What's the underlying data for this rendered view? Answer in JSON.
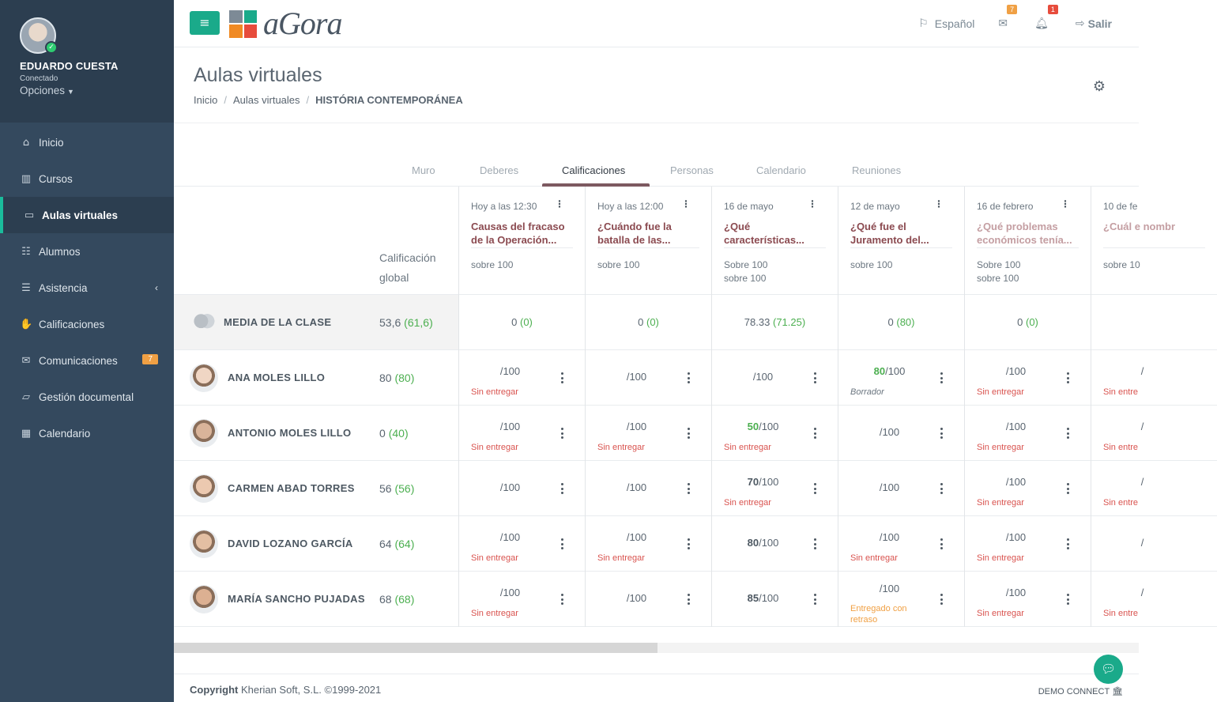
{
  "user": {
    "name": "EDUARDO CUESTA",
    "status": "Conectado",
    "options": "Opciones"
  },
  "sidebar": {
    "items": [
      {
        "label": "Inicio",
        "icon": "home-icon"
      },
      {
        "label": "Cursos",
        "icon": "books-icon"
      },
      {
        "label": "Aulas virtuales",
        "icon": "monitor-icon",
        "active": true
      },
      {
        "label": "Alumnos",
        "icon": "students-icon"
      },
      {
        "label": "Asistencia",
        "icon": "list-icon"
      },
      {
        "label": "Calificaciones",
        "icon": "handshake-icon"
      },
      {
        "label": "Comunicaciones",
        "icon": "envelope-icon",
        "badge": "7"
      },
      {
        "label": "Gestión documental",
        "icon": "folder-icon"
      },
      {
        "label": "Calendario",
        "icon": "calendar-icon"
      }
    ]
  },
  "topbar": {
    "logo": "aGora",
    "language": "Español",
    "mail_count": "7",
    "notif_count": "1",
    "logout": "Salir",
    "colors": {
      "accent": "#1aaa8a",
      "mail_badge": "#f0a044",
      "notif_badge": "#e74c3c"
    }
  },
  "page": {
    "title": "Aulas virtuales",
    "breadcrumb": [
      "Inicio",
      "Aulas virtuales",
      "HISTÓRIA CONTEMPORÁNEA"
    ]
  },
  "tabs": [
    "Muro",
    "Deberes",
    "Calificaciones",
    "Personas",
    "Calendario",
    "Reuniones"
  ],
  "active_tab": "Calificaciones",
  "grades": {
    "global_header": "Calificación global",
    "assignments": [
      {
        "date": "Hoy a las 12:30",
        "title": "Causas del fracaso de la Operación...",
        "sub": "sobre 100",
        "faded": false
      },
      {
        "date": "Hoy a las 12:00",
        "title": "¿Cuándo fue la batalla de las...",
        "sub": "sobre 100",
        "faded": false
      },
      {
        "date": "16 de mayo",
        "title": "¿Qué características...",
        "sub": "Sobre 100\nsobre 100",
        "faded": false
      },
      {
        "date": "12 de mayo",
        "title": "¿Qué fue el Juramento del...",
        "sub": "sobre 100",
        "faded": false
      },
      {
        "date": "16 de febrero",
        "title": "¿Qué problemas económicos tenía...",
        "sub": "Sobre 100\nsobre 100",
        "faded": true
      },
      {
        "date": "10 de fe",
        "title": "¿Cuál e nombr",
        "sub": "sobre 10",
        "faded": true
      }
    ],
    "class_average": {
      "label": "MEDIA DE LA CLASE",
      "global": "53,6",
      "global_alt": "61,6",
      "values": [
        [
          "0",
          "0"
        ],
        [
          "0",
          "0"
        ],
        [
          "78.33",
          "71.25"
        ],
        [
          "0",
          "80"
        ],
        [
          "0",
          "0"
        ],
        [
          "",
          ""
        ]
      ]
    },
    "students": [
      {
        "name": "ANA MOLES LILLO",
        "global": "80",
        "global_alt": "80",
        "cells": [
          {
            "score": "",
            "max": "/100",
            "status": "Sin entregar",
            "type": "red"
          },
          {
            "score": "",
            "max": "/100",
            "status": "",
            "type": ""
          },
          {
            "score": "",
            "max": "/100",
            "status": "",
            "type": ""
          },
          {
            "score": "80",
            "max": "/100",
            "status": "Borrador",
            "type": "gray",
            "green": true
          },
          {
            "score": "",
            "max": "/100",
            "status": "Sin entregar",
            "type": "red"
          },
          {
            "score": "",
            "max": "/",
            "status": "Sin entre",
            "type": "red"
          }
        ]
      },
      {
        "name": "ANTONIO MOLES LILLO",
        "global": "0",
        "global_alt": "40",
        "cells": [
          {
            "score": "",
            "max": "/100",
            "status": "Sin entregar",
            "type": "red"
          },
          {
            "score": "",
            "max": "/100",
            "status": "Sin entregar",
            "type": "red"
          },
          {
            "score": "50",
            "max": "/100",
            "status": "Sin entregar",
            "type": "red",
            "green": true
          },
          {
            "score": "",
            "max": "/100",
            "status": "",
            "type": ""
          },
          {
            "score": "",
            "max": "/100",
            "status": "Sin entregar",
            "type": "red"
          },
          {
            "score": "",
            "max": "/",
            "status": "Sin entre",
            "type": "red"
          }
        ]
      },
      {
        "name": "CARMEN ABAD TORRES",
        "global": "56",
        "global_alt": "56",
        "cells": [
          {
            "score": "",
            "max": "/100",
            "status": "",
            "type": ""
          },
          {
            "score": "",
            "max": "/100",
            "status": "",
            "type": ""
          },
          {
            "score": "70",
            "max": "/100",
            "status": "Sin entregar",
            "type": "red"
          },
          {
            "score": "",
            "max": "/100",
            "status": "",
            "type": ""
          },
          {
            "score": "",
            "max": "/100",
            "status": "Sin entregar",
            "type": "red"
          },
          {
            "score": "",
            "max": "/",
            "status": "Sin entre",
            "type": "red"
          }
        ]
      },
      {
        "name": "DAVID LOZANO GARCÍA",
        "global": "64",
        "global_alt": "64",
        "cells": [
          {
            "score": "",
            "max": "/100",
            "status": "Sin entregar",
            "type": "red"
          },
          {
            "score": "",
            "max": "/100",
            "status": "Sin entregar",
            "type": "red"
          },
          {
            "score": "80",
            "max": "/100",
            "status": "",
            "type": ""
          },
          {
            "score": "",
            "max": "/100",
            "status": "Sin entregar",
            "type": "red"
          },
          {
            "score": "",
            "max": "/100",
            "status": "Sin entregar",
            "type": "red"
          },
          {
            "score": "",
            "max": "/",
            "status": "",
            "type": ""
          }
        ]
      },
      {
        "name": "MARÍA SANCHO PUJADAS",
        "global": "68",
        "global_alt": "68",
        "cells": [
          {
            "score": "",
            "max": "/100",
            "status": "Sin entregar",
            "type": "red"
          },
          {
            "score": "",
            "max": "/100",
            "status": "",
            "type": ""
          },
          {
            "score": "85",
            "max": "/100",
            "status": "",
            "type": ""
          },
          {
            "score": "",
            "max": "/100",
            "status": "Entregado con retraso",
            "type": "orange"
          },
          {
            "score": "",
            "max": "/100",
            "status": "Sin entregar",
            "type": "red"
          },
          {
            "score": "",
            "max": "/",
            "status": "Sin entre",
            "type": "red"
          }
        ]
      }
    ]
  },
  "footer": {
    "copyright_bold": "Copyright",
    "copyright_rest": "Kherian Soft, S.L. ©1999-2021",
    "demo": "DEMO CONNECT"
  }
}
